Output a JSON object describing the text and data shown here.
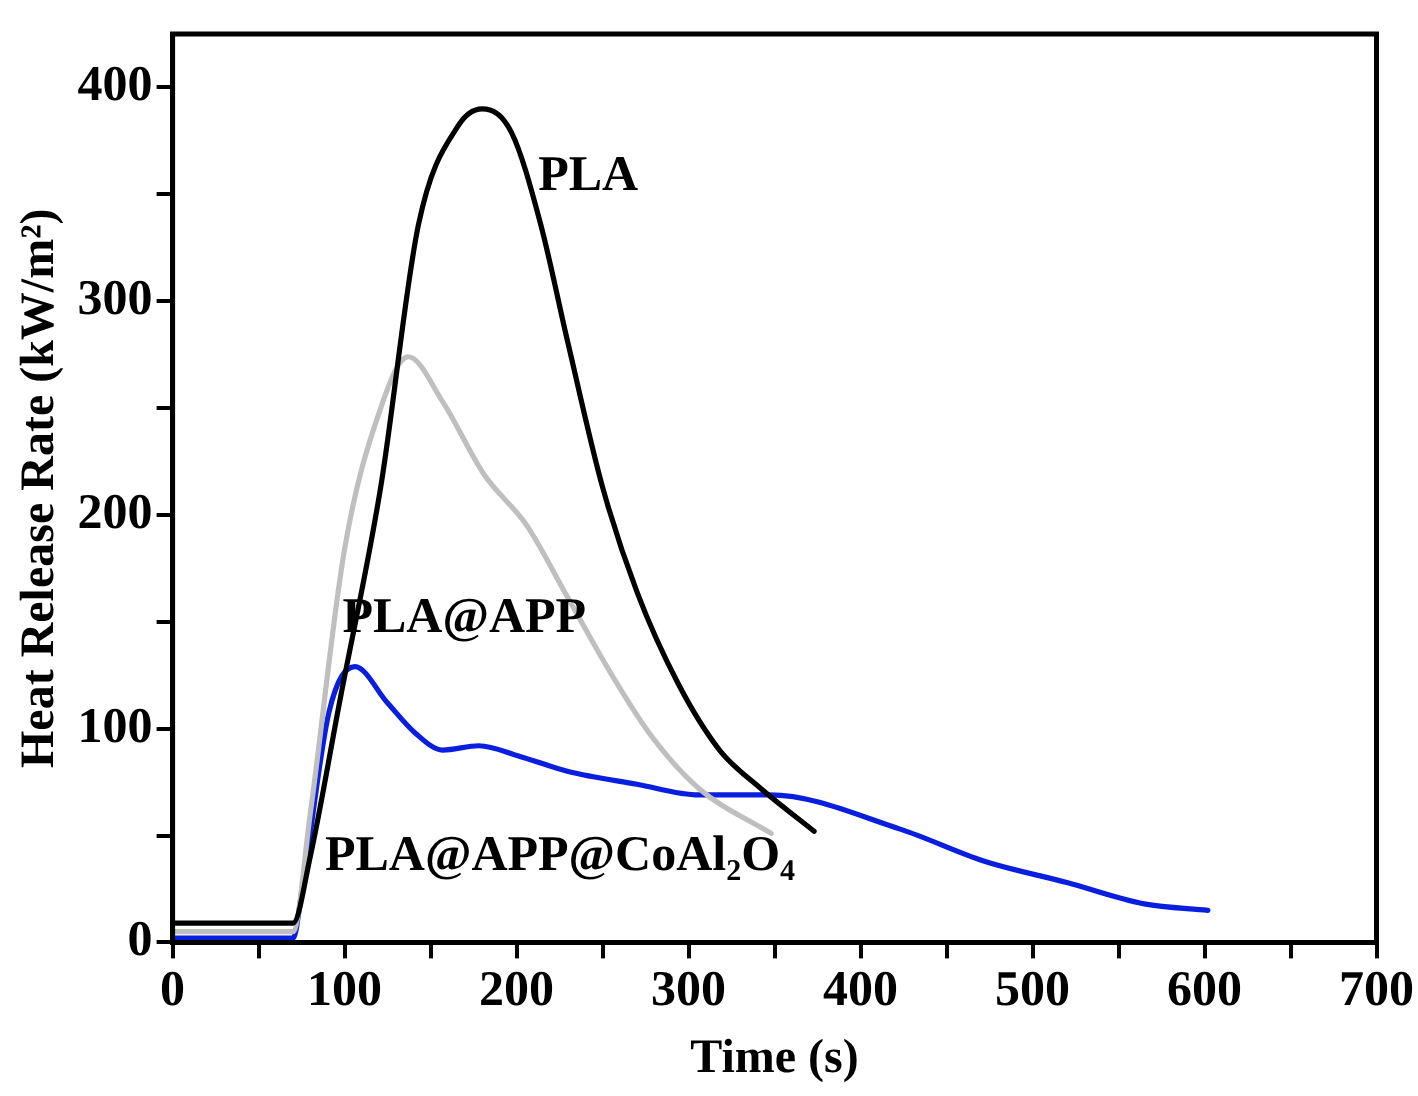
{
  "chart_data": {
    "type": "line",
    "xlabel": "Time (s)",
    "ylabel": "Heat Release Rate (kW/m²)",
    "xlim": [
      0,
      700
    ],
    "ylim": [
      0,
      425
    ],
    "xticks": [
      0,
      {
        "value": 50,
        "label": null
      },
      100,
      {
        "value": 150,
        "label": null
      },
      200,
      {
        "value": 250,
        "label": null
      },
      300,
      {
        "value": 350,
        "label": null
      },
      400,
      {
        "value": 450,
        "label": null
      },
      500,
      {
        "value": 550,
        "label": null
      },
      600,
      {
        "value": 650,
        "label": null
      },
      700
    ],
    "yticks": [
      0,
      {
        "value": 50,
        "label": null
      },
      100,
      {
        "value": 150,
        "label": null
      },
      200,
      {
        "value": 250,
        "label": null
      },
      300,
      {
        "value": 350,
        "label": null
      },
      400
    ],
    "grid": false,
    "legend": false,
    "marker": "none",
    "line_style": "solid",
    "series": [
      {
        "name": "PLA",
        "color": "#000000",
        "x": [
          0,
          70,
          80,
          97,
          121,
          143,
          166,
          180,
          197,
          214,
          230,
          250,
          270,
          294,
          318,
          342,
          373
        ],
        "values": [
          9,
          9,
          40,
          112,
          213,
          336,
          382,
          390,
          379,
          336,
          280,
          213,
          164,
          121,
          90,
          72,
          52
        ]
      },
      {
        "name": "PLA@APP",
        "color": "#bfbfbf",
        "x": [
          0,
          70,
          80,
          100,
          121,
          137,
          157,
          181,
          206,
          230,
          254,
          278,
          306,
          348
        ],
        "values": [
          5,
          5,
          60,
          184,
          250,
          274,
          253,
          219,
          195,
          161,
          127,
          97,
          72,
          51
        ]
      },
      {
        "name": "PLA@APP@CoAl₂O₄",
        "color": "#0a1ee0",
        "x": [
          0,
          70,
          76,
          91,
          106,
          125,
          141,
          157,
          178,
          202,
          230,
          270,
          306,
          347,
          423,
          472,
          520,
          565,
          602
        ],
        "values": [
          2,
          2,
          29,
          108,
          129,
          112,
          98,
          90,
          92,
          87,
          80,
          74,
          69,
          69,
          53,
          38,
          28,
          18,
          15
        ]
      }
    ]
  }
}
